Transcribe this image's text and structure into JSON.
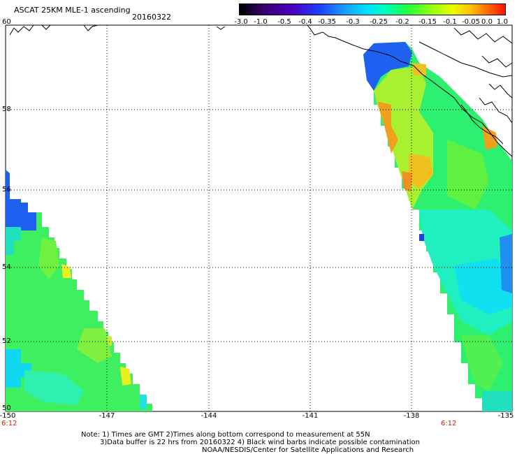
{
  "header": {
    "title": "ASCAT 25KM MLE-1 ascending",
    "date": "20160322"
  },
  "colorbar": {
    "labels": [
      "-3.0",
      "-1.0",
      "-0.5",
      "-0.4",
      "-0.35",
      "-0.3",
      "-0.25",
      "-0.2",
      "-0.15",
      "-0.1",
      "-0.05",
      "0.0",
      "1.0"
    ],
    "colors": [
      "#000000",
      "#4a0090",
      "#1a40ff",
      "#1aa0ff",
      "#00d8ff",
      "#00ffd0",
      "#20ff60",
      "#80ff20",
      "#d0ff00",
      "#ffd000",
      "#ff8000",
      "#ff2000"
    ]
  },
  "map": {
    "lat_labels": [
      "60",
      "58",
      "56",
      "54",
      "52",
      "50"
    ],
    "lon_labels": [
      "-150",
      "-147",
      "-144",
      "-141",
      "-138",
      "-135"
    ],
    "time_labels": [
      "6:12",
      "6:12"
    ],
    "grid": true,
    "lat_range": [
      50,
      60
    ],
    "lon_range": [
      -150,
      -135
    ]
  },
  "notes": [
    "Note: 1) Times are GMT 2)Times along bottom correspond to measurement at 55N",
    "3)Data buffer is 22 hrs from 20160322 4) Black wind barbs indicate possible contamination",
    "NOAA/NESDIS/Center for Satellite Applications and Research"
  ]
}
